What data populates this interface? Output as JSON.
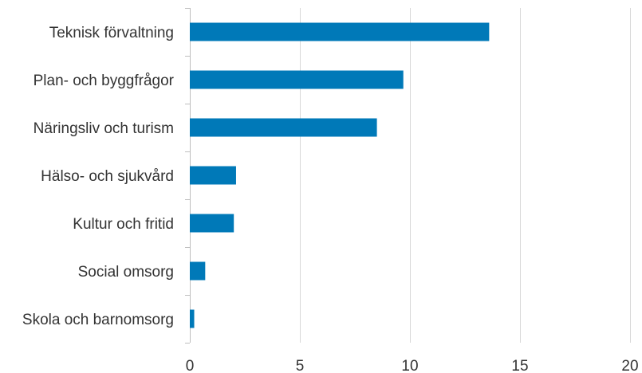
{
  "chart_data": {
    "type": "bar",
    "orientation": "horizontal",
    "categories": [
      "Teknisk förvaltning",
      "Plan- och byggfrågor",
      "Näringsliv och turism",
      "Hälso- och sjukvård",
      "Kultur och fritid",
      "Social omsorg",
      "Skola och barnomsorg"
    ],
    "values": [
      13.6,
      9.7,
      8.5,
      2.1,
      2.0,
      0.7,
      0.2
    ],
    "xlim": [
      0,
      20
    ],
    "xticks": [
      "0",
      "5",
      "10",
      "15",
      "20"
    ],
    "title": "",
    "xlabel": "",
    "ylabel": "",
    "grid": "vertical",
    "legend": "none",
    "bar_color": "#0079b8"
  }
}
